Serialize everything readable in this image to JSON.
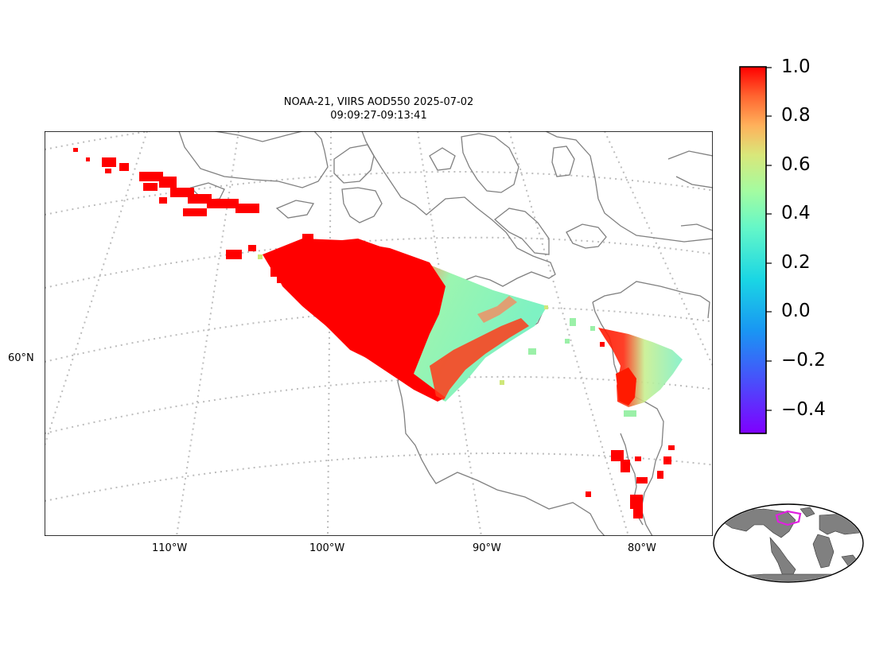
{
  "title": {
    "line1": "NOAA-21, VIIRS AOD550 2025-07-02",
    "line2": "09:09:27-09:13:41"
  },
  "map": {
    "projection": "conic",
    "lat_labels": [
      "60°N"
    ],
    "lon_labels": [
      "110°W",
      "100°W",
      "90°W",
      "80°W"
    ],
    "graticule": "dotted-gray",
    "coastline_color": "#808080"
  },
  "colorbar": {
    "colormap": "rainbow",
    "min": -0.5,
    "max": 1.0,
    "ticks": [
      "1.0",
      "0.8",
      "0.6",
      "0.4",
      "0.2",
      "0.0",
      "−0.2",
      "−0.4"
    ]
  },
  "inset": {
    "type": "world-locator",
    "land_color": "#808080",
    "box_color": "#e020e0"
  }
}
